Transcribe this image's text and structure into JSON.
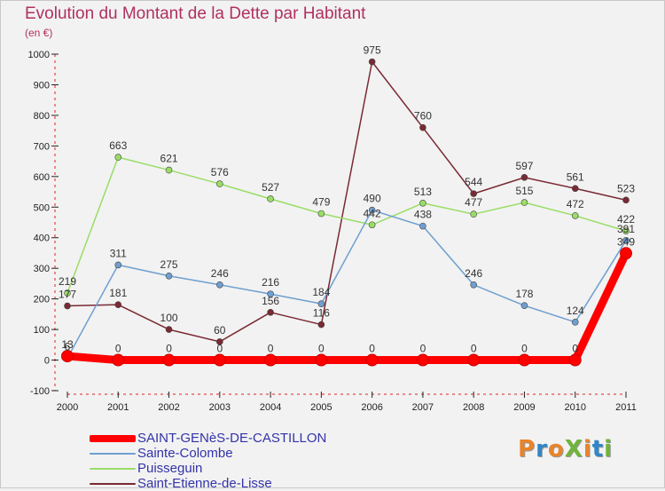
{
  "title": "Evolution du Montant de la Dette par Habitant",
  "subtitle": "(en €)",
  "logo": {
    "text": "ProXiti",
    "colors": [
      "#e8842a",
      "#2f86c8",
      "#e8842a",
      "#6fb43a",
      "#e8842a",
      "#2f86c8",
      "#6fb43a"
    ]
  },
  "chart_data": {
    "type": "line",
    "title": "Evolution du Montant de la Dette par Habitant",
    "subtitle": "(en €)",
    "xlabel": "",
    "ylabel": "",
    "x": [
      "2000",
      "2001",
      "2002",
      "2003",
      "2004",
      "2005",
      "2006",
      "2007",
      "2008",
      "2009",
      "2010",
      "2011"
    ],
    "ylim": [
      -100,
      1000
    ],
    "yticks": [
      -100,
      0,
      100,
      200,
      300,
      400,
      500,
      600,
      700,
      800,
      900,
      1000
    ],
    "grid": false,
    "legend_position": "bottom-left",
    "series": [
      {
        "name": "SAINT-GENèS-DE-CASTILLON",
        "color": "#ff0000",
        "values": [
          13,
          0,
          0,
          0,
          0,
          0,
          0,
          0,
          0,
          0,
          0,
          349
        ],
        "labels": [
          "13",
          "0",
          "0",
          "0",
          "0",
          "0",
          "0",
          "0",
          "0",
          "0",
          "0",
          "349"
        ]
      },
      {
        "name": "Sainte-Colombe",
        "color": "#6f9fd0",
        "values": [
          6,
          311,
          275,
          246,
          216,
          184,
          490,
          438,
          246,
          178,
          124,
          391
        ],
        "labels": [
          "6",
          "311",
          "275",
          "246",
          "216",
          "184",
          "490",
          "438",
          "246",
          "178",
          "124",
          "391"
        ]
      },
      {
        "name": "Puisseguin",
        "color": "#99dd66",
        "values": [
          219,
          663,
          621,
          576,
          527,
          479,
          442,
          513,
          477,
          515,
          472,
          422
        ],
        "labels": [
          "219",
          "663",
          "621",
          "576",
          "527",
          "479",
          "442",
          "513",
          "477",
          "515",
          "472",
          "422"
        ]
      },
      {
        "name": "Saint-Etienne-de-Lisse",
        "color": "#7a2a34",
        "values": [
          177,
          181,
          100,
          60,
          156,
          116,
          975,
          760,
          544,
          597,
          561,
          523
        ],
        "labels": [
          "177",
          "181",
          "100",
          "60",
          "156",
          "116",
          "975",
          "760",
          "544",
          "597",
          "561",
          "523"
        ]
      }
    ]
  }
}
